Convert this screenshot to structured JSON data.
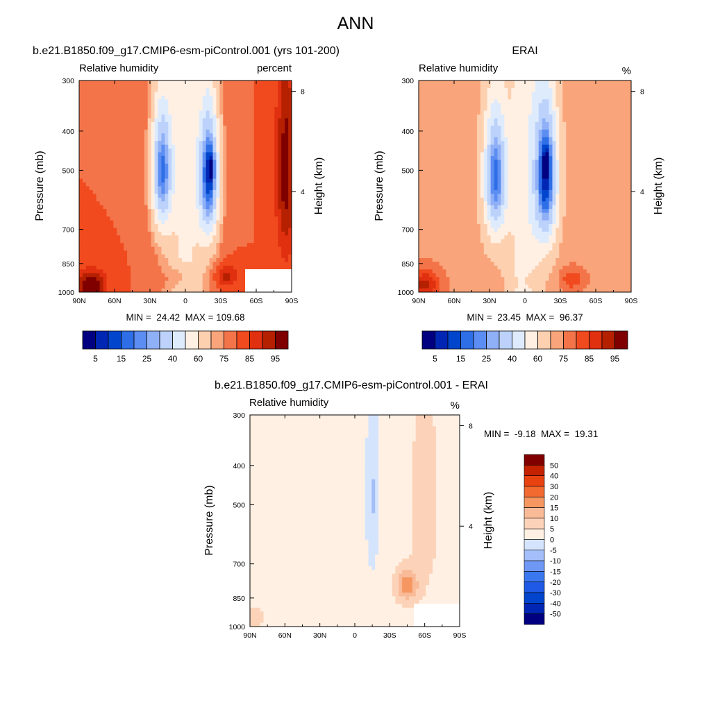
{
  "figure": {
    "title": "ANN"
  },
  "labels": {
    "variable": "Relative humidity",
    "y_left": "Pressure (mb)",
    "y_right": "Height (km)"
  },
  "colors": {
    "abs_scale": [
      "#000080",
      "#0026b3",
      "#0045cc",
      "#2e6ee6",
      "#5c8df2",
      "#8fb0f7",
      "#bcd2fb",
      "#deebfd",
      "#fff0e3",
      "#fdd0b0",
      "#f9a47a",
      "#f4744a",
      "#f04a1e",
      "#e03010",
      "#b52000",
      "#800000"
    ],
    "diff_scale": [
      "#000080",
      "#0026b3",
      "#0045cc",
      "#1f5ae6",
      "#3b78f0",
      "#6f98f5",
      "#a3bef9",
      "#d5e4fd",
      "#fff0e3",
      "#fcd3b8",
      "#f9ba98",
      "#f69660",
      "#f26a30",
      "#e84210",
      "#c42200",
      "#800000"
    ]
  },
  "panels": {
    "model": {
      "title": "b.e21.B1850.f09_g17.CMIP6-esm-piControl.001 (yrs 101-200)",
      "units": "percent",
      "stats": "MIN =  24.42  MAX = 109.68",
      "colorbar_labels": [
        "5",
        "15",
        "25",
        "40",
        "60",
        "75",
        "85",
        "95"
      ]
    },
    "obs": {
      "title": "ERAI",
      "units": "%",
      "stats": "MIN =  23.45  MAX =  96.37",
      "colorbar_labels": [
        "5",
        "15",
        "25",
        "40",
        "60",
        "75",
        "85",
        "95"
      ]
    },
    "diff": {
      "title": "b.e21.B1850.f09_g17.CMIP6-esm-piControl.001 - ERAI",
      "units": "%",
      "stats": "MIN =  -9.18  MAX =  19.31",
      "colorbar_labels": [
        "50",
        "40",
        "30",
        "20",
        "15",
        "10",
        "5",
        "0",
        "-5",
        "-10",
        "-15",
        "-20",
        "-30",
        "-40",
        "-50"
      ]
    }
  },
  "chart_data": [
    {
      "type": "heatmap",
      "title": "b.e21.B1850.f09_g17.CMIP6-esm-piControl.001 (yrs 101-200)",
      "variable": "Relative humidity",
      "units": "percent",
      "x_ticks": [
        "90N",
        "60N",
        "30N",
        "0",
        "30S",
        "60S",
        "90S"
      ],
      "x_values": [
        90,
        60,
        30,
        0,
        -30,
        -60,
        -90
      ],
      "y_ticks": [
        "300",
        "400",
        "500",
        "700",
        "850",
        "1000"
      ],
      "y_values": [
        300,
        400,
        500,
        700,
        850,
        1000
      ],
      "y2_ticks": [
        "8",
        "4"
      ],
      "xlabel": "",
      "ylabel": "Pressure (mb)",
      "y2label": "Height (km)",
      "min": 24.42,
      "max": 109.68,
      "levels": [
        5,
        10,
        15,
        20,
        25,
        30,
        40,
        50,
        60,
        70,
        75,
        80,
        85,
        90,
        95
      ],
      "anomalies": [
        {
          "lat": 20,
          "p": 500,
          "amp": -58,
          "slat": 9,
          "sp": 190
        },
        {
          "lat": -20,
          "p": 520,
          "amp": -64,
          "slat": 9,
          "sp": 210
        },
        {
          "lat": -22,
          "p": 490,
          "amp": -16,
          "slat": 3,
          "sp": 45
        },
        {
          "lat": 80,
          "p": 960,
          "amp": 22,
          "slat": 12,
          "sp": 80
        },
        {
          "lat": 5,
          "p": 920,
          "amp": 12,
          "slat": 10,
          "sp": 60
        },
        {
          "lat": -35,
          "p": 910,
          "amp": 12,
          "slat": 10,
          "sp": 55
        },
        {
          "lat": -85,
          "p": 500,
          "amp": 18,
          "slat": 8,
          "sp": 300
        }
      ],
      "baseline": {
        "base": 80,
        "equator_dip": 22,
        "equator_width": 16
      }
    },
    {
      "type": "heatmap",
      "title": "ERAI",
      "variable": "Relative humidity",
      "units": "%",
      "x_ticks": [
        "90N",
        "60N",
        "30N",
        "0",
        "30S",
        "60S",
        "90S"
      ],
      "x_values": [
        90,
        60,
        30,
        0,
        -30,
        -60,
        -90
      ],
      "y_ticks": [
        "300",
        "400",
        "500",
        "700",
        "850",
        "1000"
      ],
      "y_values": [
        300,
        400,
        500,
        700,
        850,
        1000
      ],
      "y2_ticks": [
        "8",
        "4"
      ],
      "xlabel": "",
      "ylabel": "Pressure (mb)",
      "y2label": "Height (km)",
      "min": 23.45,
      "max": 96.37,
      "levels": [
        5,
        10,
        15,
        20,
        25,
        30,
        40,
        50,
        60,
        70,
        75,
        80,
        85,
        90,
        95
      ],
      "anomalies": [
        {
          "lat": 25,
          "p": 520,
          "amp": -56,
          "slat": 10,
          "sp": 200
        },
        {
          "lat": -18,
          "p": 520,
          "amp": -62,
          "slat": 10,
          "sp": 220
        },
        {
          "lat": -18,
          "p": 480,
          "amp": -14,
          "slat": 3,
          "sp": 45
        },
        {
          "lat": 85,
          "p": 960,
          "amp": 18,
          "slat": 12,
          "sp": 80
        },
        {
          "lat": -5,
          "p": 940,
          "amp": 8,
          "slat": 10,
          "sp": 60
        },
        {
          "lat": -40,
          "p": 930,
          "amp": 10,
          "slat": 10,
          "sp": 55
        }
      ],
      "baseline": {
        "base": 74,
        "equator_dip": 20,
        "equator_width": 14
      }
    },
    {
      "type": "heatmap",
      "title": "b.e21.B1850.f09_g17.CMIP6-esm-piControl.001 - ERAI",
      "variable": "Relative humidity",
      "units": "%",
      "x_ticks": [
        "90N",
        "60N",
        "30N",
        "0",
        "30S",
        "60S",
        "90S"
      ],
      "x_values": [
        90,
        60,
        30,
        0,
        -30,
        -60,
        -90
      ],
      "y_ticks": [
        "300",
        "400",
        "500",
        "700",
        "850",
        "1000"
      ],
      "y_values": [
        300,
        400,
        500,
        700,
        850,
        1000
      ],
      "y2_ticks": [
        "8",
        "4"
      ],
      "xlabel": "",
      "ylabel": "Pressure (mb)",
      "y2label": "Height (km)",
      "min": -9.18,
      "max": 19.31,
      "levels": [
        -50,
        -40,
        -30,
        -20,
        -15,
        -10,
        -5,
        0,
        5,
        10,
        15,
        20,
        30,
        40,
        50
      ],
      "anomalies": [
        {
          "lat": -15,
          "p": 480,
          "amp": -9,
          "slat": 6,
          "sp": 250
        },
        {
          "lat": -45,
          "p": 790,
          "amp": 15,
          "slat": 9,
          "sp": 70
        },
        {
          "lat": -60,
          "p": 500,
          "amp": 5,
          "slat": 10,
          "sp": 250
        },
        {
          "lat": 15,
          "p": 700,
          "amp": -3,
          "slat": 6,
          "sp": 150
        },
        {
          "lat": 85,
          "p": 950,
          "amp": 6,
          "slat": 5,
          "sp": 50
        }
      ],
      "baseline": {
        "base": 3.5,
        "equator_dip": 0,
        "equator_width": 14
      }
    }
  ]
}
